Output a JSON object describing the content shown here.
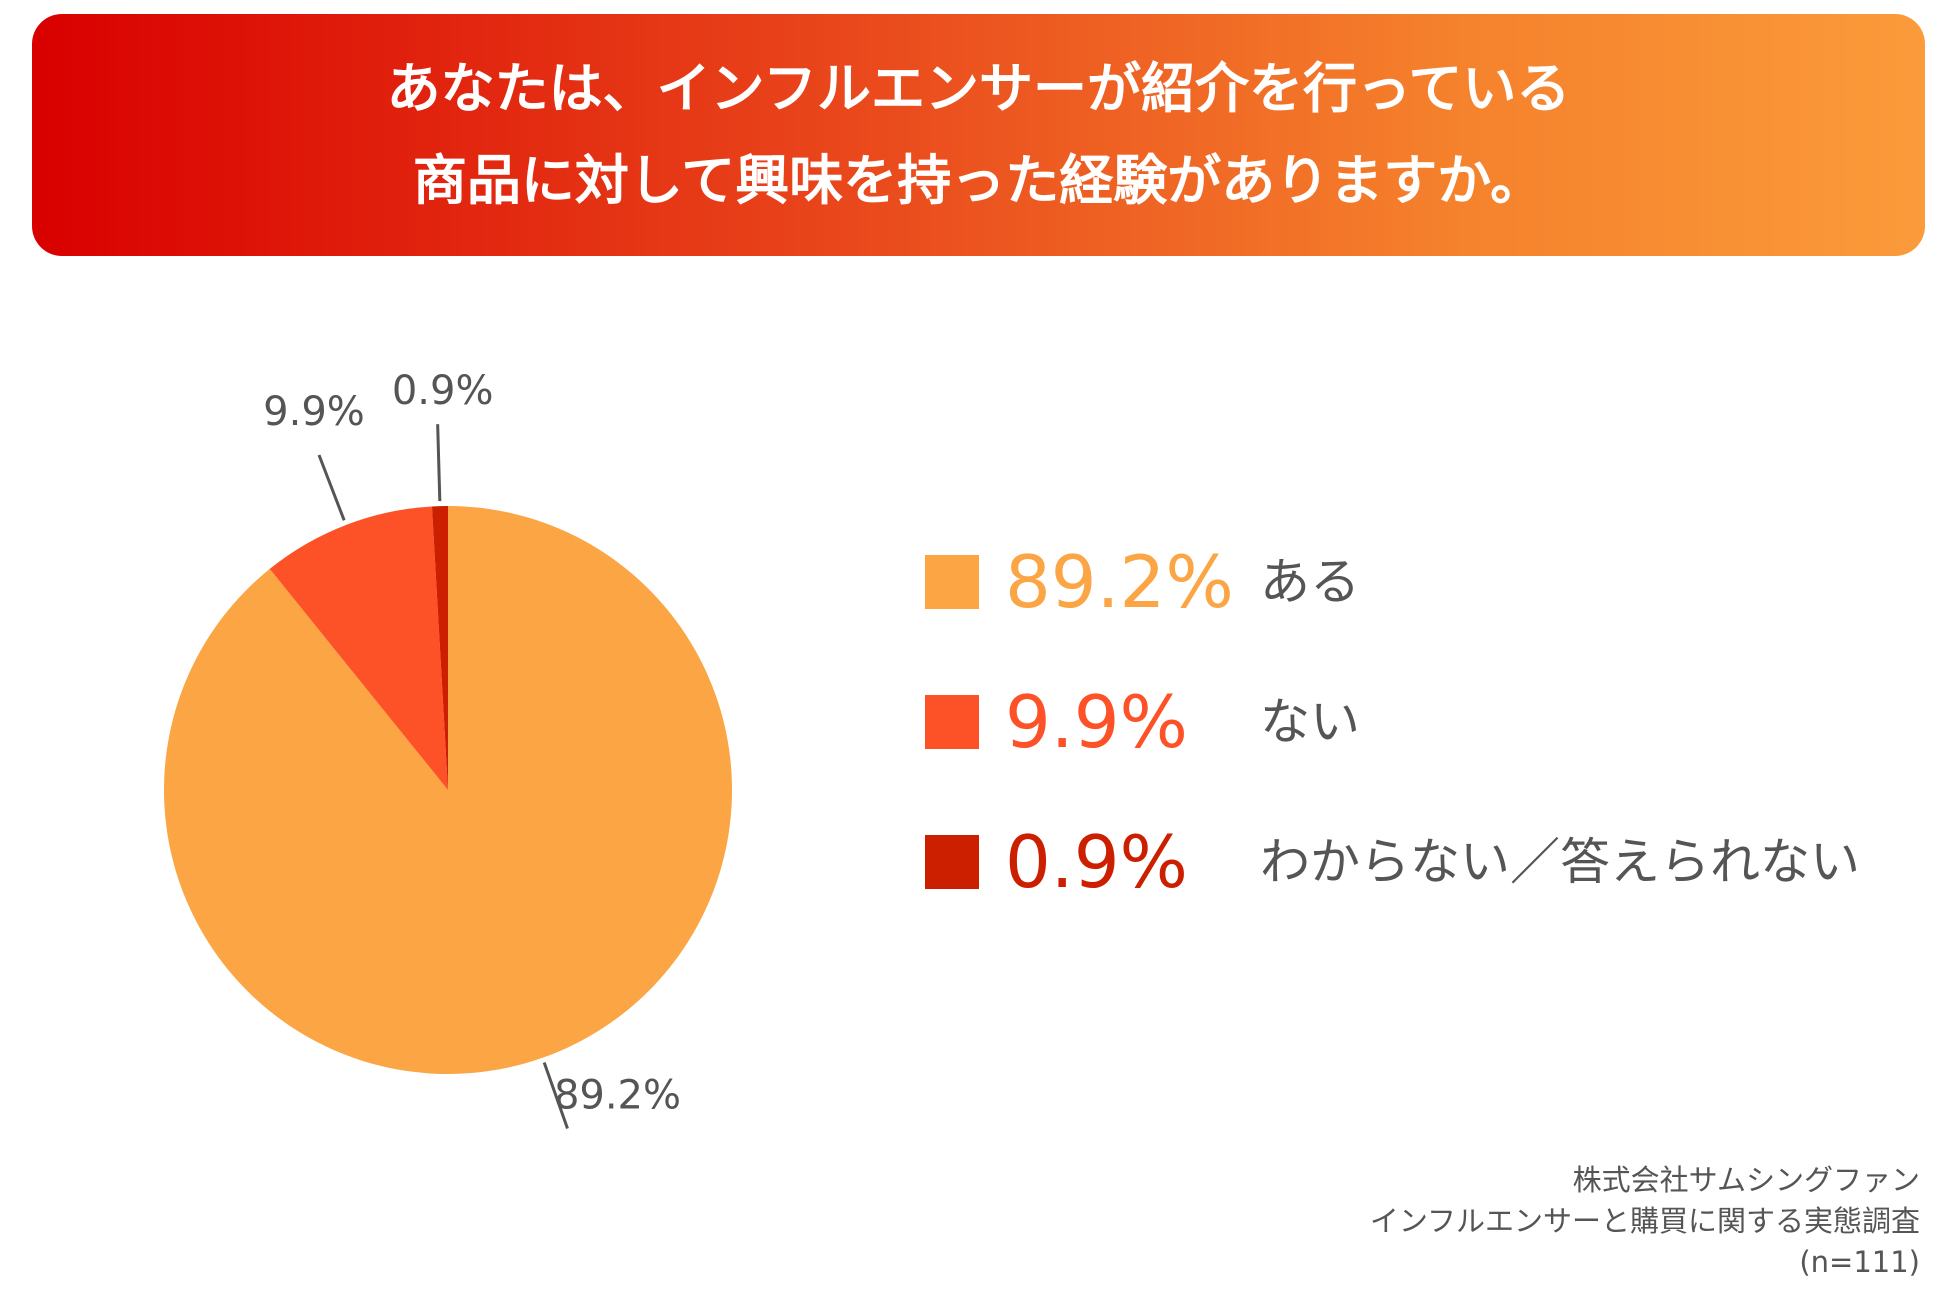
{
  "banner": {
    "title_line1": "あなたは、インフルエンサーが紹介を行っている",
    "title_line2": "商品に対して興味を持った経験がありますか。",
    "gradient_start": "#d90000",
    "gradient_end": "#fb9b3a"
  },
  "chart_data": {
    "type": "pie",
    "title": "あなたは、インフルエンサーが紹介を行っている商品に対して興味を持った経験がありますか。",
    "slices": [
      {
        "label": "ある",
        "value": 89.2,
        "value_text": "89.2%",
        "color": "#fba545"
      },
      {
        "label": "ない",
        "value": 9.9,
        "value_text": "9.9%",
        "color": "#fd5227"
      },
      {
        "label": "わからない／答えられない",
        "value": 0.9,
        "value_text": "0.9%",
        "color": "#cc1f00"
      }
    ],
    "legend_position": "right",
    "start_angle_deg": 0,
    "direction": "clockwise"
  },
  "footer": {
    "company": "株式会社サムシングファン",
    "survey": "インフルエンサーと購買に関する実態調査",
    "sample": "(n=111)"
  }
}
